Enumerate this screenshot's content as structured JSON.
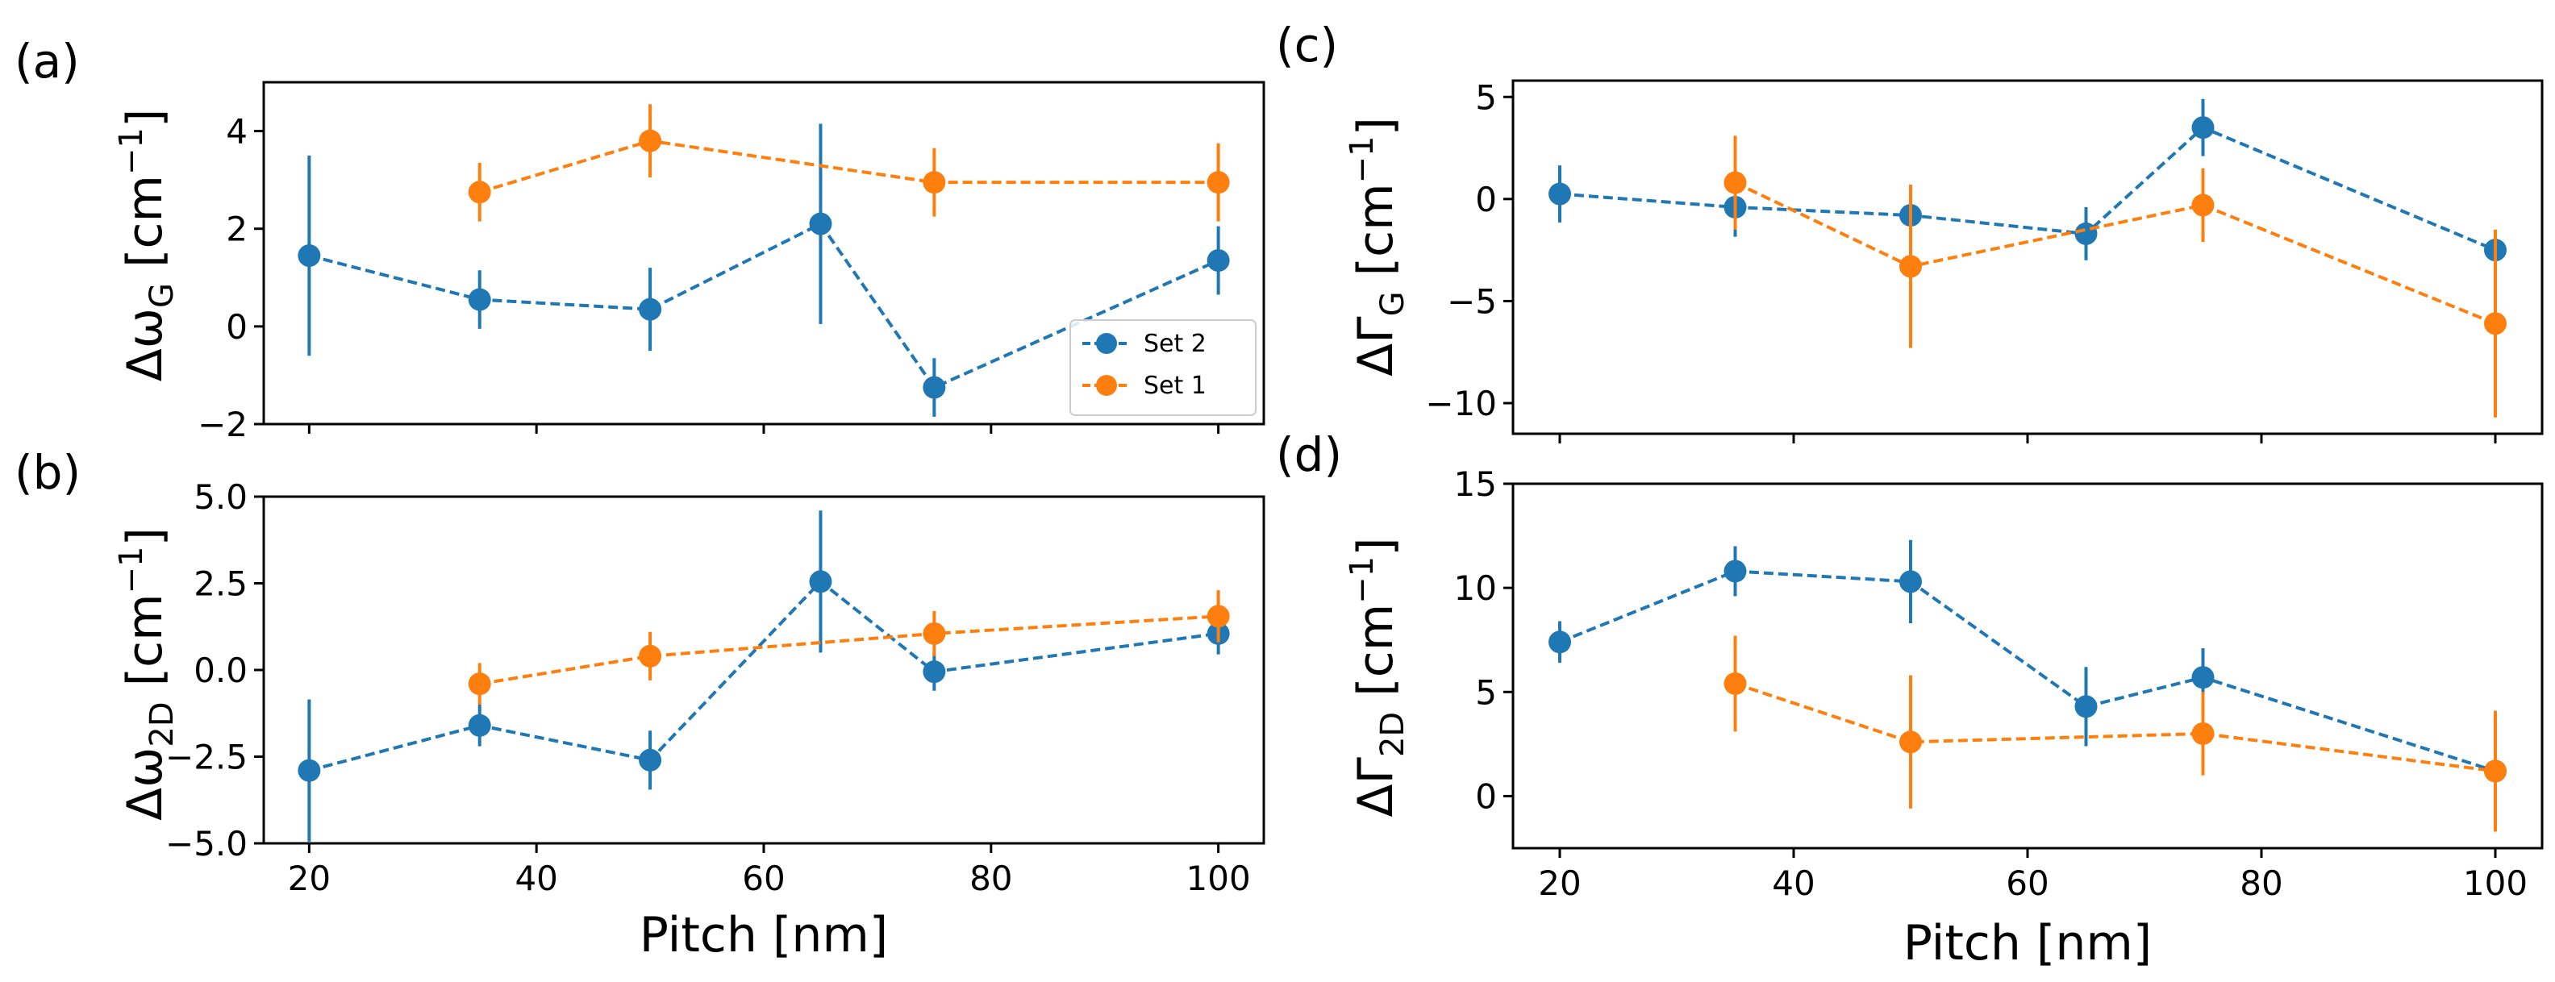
{
  "colors": {
    "set2": "#1f77b4",
    "set1": "#ff7f0e"
  },
  "xlabel": "Pitch [nm]",
  "legend": {
    "entries": [
      "Set 2",
      "Set 1"
    ],
    "location": "lower-right of panel (a)"
  },
  "chart_data": [
    {
      "id": "a",
      "type": "line",
      "panel_label": "(a)",
      "ylabel_main": "Δω",
      "ylabel_sub": "G",
      "ylabel_unit": "[cm",
      "ylabel_sup": "−1",
      "ylabel_close": "]",
      "xlim": [
        16,
        104
      ],
      "ylim": [
        -2,
        5
      ],
      "xticks": [
        20,
        40,
        60,
        80,
        100
      ],
      "xtick_labels": [
        "20",
        "40",
        "60",
        "80",
        "100"
      ],
      "show_xtick_labels": false,
      "yticks": [
        -2,
        0,
        2,
        4
      ],
      "ytick_labels": [
        "−2",
        "0",
        "2",
        "4"
      ],
      "series": [
        {
          "name": "Set 2",
          "x": [
            20,
            35,
            50,
            65,
            75,
            100
          ],
          "y": [
            1.45,
            0.55,
            0.35,
            2.1,
            -1.25,
            1.35
          ],
          "err": [
            2.05,
            0.6,
            0.85,
            2.05,
            0.6,
            0.7
          ]
        },
        {
          "name": "Set 1",
          "x": [
            35,
            50,
            75,
            100
          ],
          "y": [
            2.75,
            3.8,
            2.95,
            2.95
          ],
          "err": [
            0.6,
            0.75,
            0.7,
            0.8
          ]
        }
      ]
    },
    {
      "id": "b",
      "type": "line",
      "panel_label": "(b)",
      "ylabel_main": "Δω",
      "ylabel_sub": "2D",
      "ylabel_unit": "[cm",
      "ylabel_sup": "−1",
      "ylabel_close": "]",
      "xlim": [
        16,
        104
      ],
      "ylim": [
        -5,
        5
      ],
      "xticks": [
        20,
        40,
        60,
        80,
        100
      ],
      "xtick_labels": [
        "20",
        "40",
        "60",
        "80",
        "100"
      ],
      "show_xtick_labels": true,
      "yticks": [
        -5,
        -2.5,
        0,
        2.5,
        5
      ],
      "ytick_labels": [
        "−5.0",
        "−2.5",
        "0.0",
        "2.5",
        "5.0"
      ],
      "series": [
        {
          "name": "Set 2",
          "x": [
            20,
            35,
            50,
            65,
            75,
            100
          ],
          "y": [
            -2.9,
            -1.6,
            -2.6,
            2.55,
            -0.05,
            1.05
          ],
          "err": [
            2.05,
            0.6,
            0.85,
            2.05,
            0.55,
            0.6
          ]
        },
        {
          "name": "Set 1",
          "x": [
            35,
            50,
            75,
            100
          ],
          "y": [
            -0.4,
            0.4,
            1.05,
            1.55
          ],
          "err": [
            0.6,
            0.7,
            0.65,
            0.75
          ]
        }
      ]
    },
    {
      "id": "c",
      "type": "line",
      "panel_label": "(c)",
      "ylabel_main": "ΔΓ",
      "ylabel_sub": "G",
      "ylabel_unit": "[cm",
      "ylabel_sup": "−1",
      "ylabel_close": "]",
      "xlim": [
        16,
        104
      ],
      "ylim": [
        -11.5,
        5.8
      ],
      "xticks": [
        20,
        40,
        60,
        80,
        100
      ],
      "xtick_labels": [
        "20",
        "40",
        "60",
        "80",
        "100"
      ],
      "show_xtick_labels": false,
      "yticks": [
        -10,
        -5,
        0,
        5
      ],
      "ytick_labels": [
        "−10",
        "−5",
        "0",
        "5"
      ],
      "series": [
        {
          "name": "Set 2",
          "x": [
            20,
            35,
            50,
            65,
            75,
            100
          ],
          "y": [
            0.25,
            -0.4,
            -0.8,
            -1.7,
            3.5,
            -2.5
          ],
          "err": [
            1.4,
            1.45,
            1.5,
            1.3,
            1.4,
            0.4
          ]
        },
        {
          "name": "Set 1",
          "x": [
            35,
            50,
            75,
            100
          ],
          "y": [
            0.8,
            -3.3,
            -0.3,
            -6.1
          ],
          "err": [
            2.3,
            4.0,
            1.8,
            4.6
          ]
        }
      ]
    },
    {
      "id": "d",
      "type": "line",
      "panel_label": "(d)",
      "ylabel_main": "ΔΓ",
      "ylabel_sub": "2D",
      "ylabel_unit": "[cm",
      "ylabel_sup": "−1",
      "ylabel_close": "]",
      "xlim": [
        16,
        104
      ],
      "ylim": [
        -2.5,
        15
      ],
      "xticks": [
        20,
        40,
        60,
        80,
        100
      ],
      "xtick_labels": [
        "20",
        "40",
        "60",
        "80",
        "100"
      ],
      "show_xtick_labels": true,
      "yticks": [
        0,
        5,
        10,
        15
      ],
      "ytick_labels": [
        "0",
        "5",
        "10",
        "15"
      ],
      "series": [
        {
          "name": "Set 2",
          "x": [
            20,
            35,
            50,
            65,
            75,
            100
          ],
          "y": [
            7.4,
            10.8,
            10.3,
            4.3,
            5.7,
            1.2
          ],
          "err": [
            1.0,
            1.2,
            2.0,
            1.9,
            1.4,
            0.5
          ]
        },
        {
          "name": "Set 1",
          "x": [
            35,
            50,
            75,
            100
          ],
          "y": [
            5.4,
            2.6,
            3.0,
            1.2
          ],
          "err": [
            2.3,
            3.2,
            2.0,
            2.9
          ]
        }
      ]
    }
  ]
}
